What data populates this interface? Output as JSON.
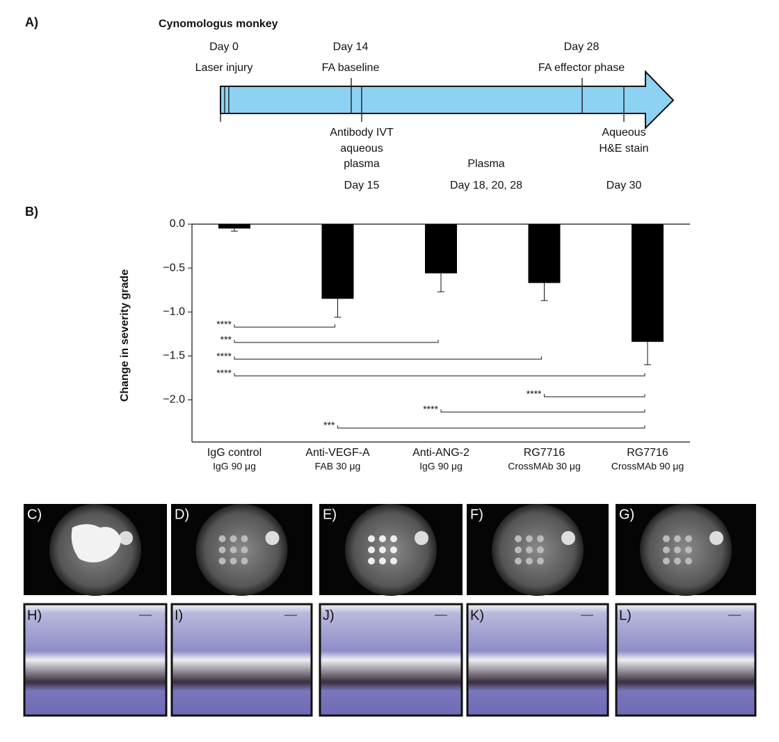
{
  "panel_a": {
    "label": "A)",
    "title": "Cynomologus monkey",
    "top_events": [
      {
        "day": "Day 0",
        "text": "Laser injury"
      },
      {
        "day": "Day 14",
        "text": "FA baseline"
      },
      {
        "day": "Day 28",
        "text": "FA effector phase"
      }
    ],
    "bottom_events": [
      {
        "lines": [
          "Antibody IVT",
          "aqueous",
          "plasma"
        ],
        "day": "Day 15"
      },
      {
        "lines": [
          "Plasma"
        ],
        "day": "Day 18, 20, 28"
      },
      {
        "lines": [
          "Aqueous",
          "H&E stain"
        ],
        "day": "Day 30"
      }
    ]
  },
  "chart_data": {
    "type": "bar",
    "panel_label": "B)",
    "ylabel": "Change in severity grade",
    "categories": [
      "IgG control",
      "Anti-VEGF-A",
      "Anti-ANG-2",
      "RG7716",
      "RG7716"
    ],
    "category_sublabels": [
      "IgG 90 μg",
      "FAB 30 μg",
      "IgG 90 μg",
      "CrossMAb 30 μg",
      "CrossMAb 90 μg"
    ],
    "values": [
      -0.05,
      -0.85,
      -0.56,
      -0.67,
      -1.34
    ],
    "errors": [
      0.03,
      0.21,
      0.21,
      0.2,
      0.26
    ],
    "color": "#000000",
    "ylim": [
      -2.48,
      0
    ],
    "yticks": [
      {
        "value": 0,
        "label": "0.0"
      },
      {
        "value": -0.5,
        "label": "−0.5"
      },
      {
        "value": -1,
        "label": "−1.0"
      },
      {
        "value": -1.5,
        "label": "−1.5"
      },
      {
        "value": -2,
        "label": "−2.0"
      }
    ],
    "significance": [
      {
        "from": 0,
        "to": 1,
        "label": "****"
      },
      {
        "from": 0,
        "to": 2,
        "label": "***"
      },
      {
        "from": 0,
        "to": 3,
        "label": "****"
      },
      {
        "from": 0,
        "to": 4,
        "label": "****"
      },
      {
        "from": 3,
        "to": 4,
        "label": "****"
      },
      {
        "from": 2,
        "to": 4,
        "label": "****"
      },
      {
        "from": 1,
        "to": 4,
        "label": "***"
      }
    ]
  },
  "images": {
    "fundus_labels": [
      "C)",
      "D)",
      "E)",
      "F)",
      "G)"
    ],
    "histology_labels": [
      "H)",
      "I)",
      "J)",
      "K)",
      "L)"
    ]
  }
}
